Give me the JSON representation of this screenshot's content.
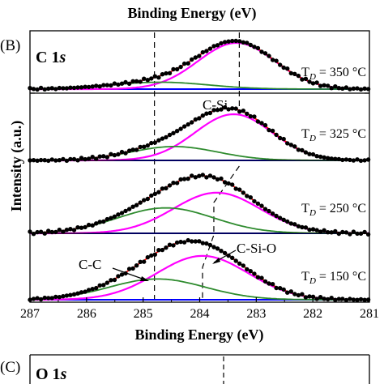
{
  "top_label": "Binding Energy (eV)",
  "panel_b": {
    "panel_letter": "(B)",
    "title": "C 1s",
    "title_element": "C 1",
    "title_orbital": "s",
    "xlabel": "Binding Energy (eV)",
    "ylabel": "Intensity (a.u.)",
    "annotations": [
      "C-Si",
      "C-Si-O",
      "C-C"
    ]
  },
  "panel_c": {
    "panel_letter": "(C)",
    "title_element": "O 1",
    "title_orbital": "s"
  },
  "colors": {
    "envelope_fit": "#ff00ff",
    "component": "#2e8b2e",
    "baseline": "#0000ff",
    "points": "#000000",
    "fit_line": "#ff0000"
  },
  "chart_data": {
    "type": "line",
    "title": "C 1s",
    "xlabel": "Binding Energy (eV)",
    "ylabel": "Intensity (a.u.)",
    "x_ticks": [
      287,
      286,
      285,
      284,
      283,
      282,
      281
    ],
    "xlim": [
      287,
      281
    ],
    "x_reversed": true,
    "reference_lines_eV": [
      284.8,
      283.3
    ],
    "spectra": [
      {
        "label": "T_D = 350 °C",
        "label_prefix": "T",
        "label_sub": "D",
        "label_suffix": " = 350 °C",
        "peaks": [
          {
            "name": "C-Si",
            "center": 283.35,
            "height": 1.0,
            "fwhm": 1.6
          },
          {
            "name": "C-C",
            "center": 284.7,
            "height": 0.15,
            "fwhm": 2.0
          }
        ]
      },
      {
        "label": "T_D = 325 °C",
        "label_prefix": "T",
        "label_sub": "D",
        "label_suffix": " = 325 °C",
        "peaks": [
          {
            "name": "C-Si",
            "center": 283.4,
            "height": 1.0,
            "fwhm": 1.6
          },
          {
            "name": "C-C",
            "center": 284.45,
            "height": 0.3,
            "fwhm": 1.8
          }
        ]
      },
      {
        "label": "T_D = 250 °C",
        "label_prefix": "T",
        "label_sub": "D",
        "label_suffix": " = 250 °C",
        "peaks": [
          {
            "name": "C-Si-O",
            "center": 283.7,
            "height": 0.88,
            "fwhm": 1.8
          },
          {
            "name": "C-C",
            "center": 284.6,
            "height": 0.55,
            "fwhm": 2.0
          }
        ]
      },
      {
        "label": "T_D = 150 °C",
        "label_prefix": "T",
        "label_sub": "D",
        "label_suffix": " = 150 °C",
        "peaks": [
          {
            "name": "C-Si-O",
            "center": 283.95,
            "height": 0.95,
            "fwhm": 1.9
          },
          {
            "name": "C-C",
            "center": 284.75,
            "height": 0.45,
            "fwhm": 2.0
          }
        ]
      }
    ]
  }
}
